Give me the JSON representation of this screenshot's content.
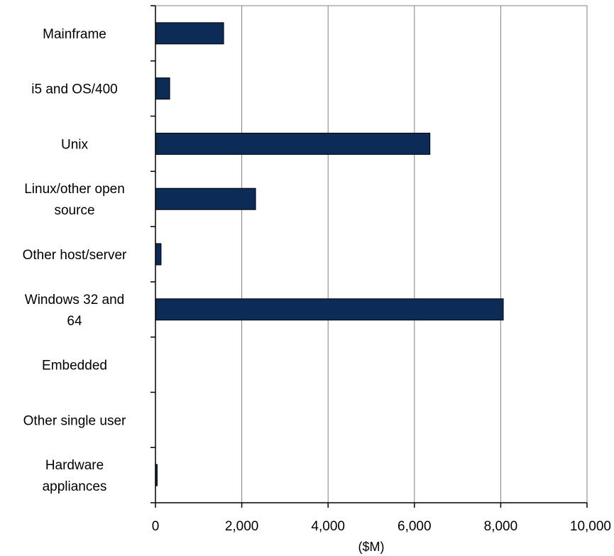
{
  "chart_data": {
    "type": "bar",
    "orientation": "horizontal",
    "categories": [
      [
        "Mainframe"
      ],
      [
        "i5 and OS/400"
      ],
      [
        "Unix"
      ],
      [
        "Linux/other open",
        "source"
      ],
      [
        "Other host/server"
      ],
      [
        "Windows 32 and",
        "64"
      ],
      [
        "Embedded"
      ],
      [
        "Other single user"
      ],
      [
        "Hardware",
        "appliances"
      ]
    ],
    "values": [
      1580,
      330,
      6360,
      2320,
      130,
      8060,
      0,
      0,
      40
    ],
    "xlabel": "($M)",
    "ylabel": "",
    "xlim": [
      0,
      10000
    ],
    "xticks": [
      0,
      2000,
      4000,
      6000,
      8000,
      10000
    ],
    "xtick_labels": [
      "0",
      "2,000",
      "4,000",
      "6,000",
      "8,000",
      "10,000"
    ],
    "grid": "vertical",
    "legend": "none",
    "colors": {
      "bar": "#0d2b57",
      "bar_edge": "#000000",
      "grid": "#808080",
      "axis": "#000000"
    }
  }
}
